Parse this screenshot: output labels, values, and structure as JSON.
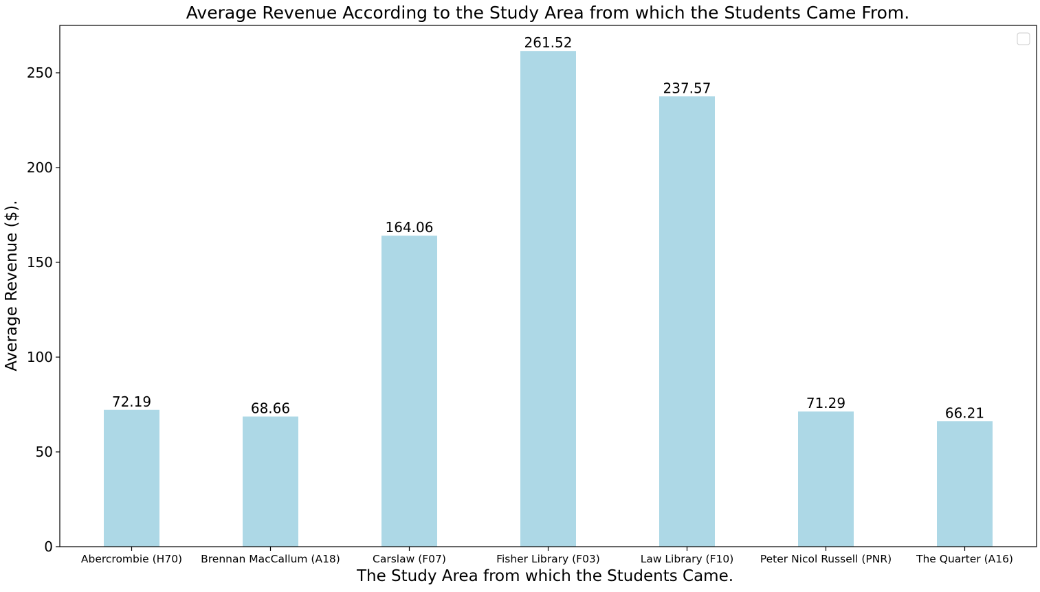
{
  "chart_data": {
    "type": "bar",
    "title": "Average Revenue According to the Study Area from which the Students Came From.",
    "xlabel": "The Study Area from which the Students Came.",
    "ylabel": "Average Revenue ($).",
    "categories": [
      "Abercrombie (H70)",
      "Brennan MacCallum (A18)",
      "Carslaw (F07)",
      "Fisher Library (F03)",
      "Law Library (F10)",
      "Peter Nicol Russell (PNR)",
      "The Quarter (A16)"
    ],
    "values": [
      72.19,
      68.66,
      164.06,
      261.52,
      237.57,
      71.29,
      66.21
    ],
    "data_labels": [
      "72.19",
      "68.66",
      "164.06",
      "261.52",
      "237.57",
      "71.29",
      "66.21"
    ],
    "ylim": [
      0,
      275
    ],
    "yticks": [
      0,
      50,
      100,
      150,
      200,
      250
    ],
    "bar_color": "#add8e6",
    "grid": false,
    "legend": {
      "placement": "top-right",
      "entries": []
    }
  }
}
